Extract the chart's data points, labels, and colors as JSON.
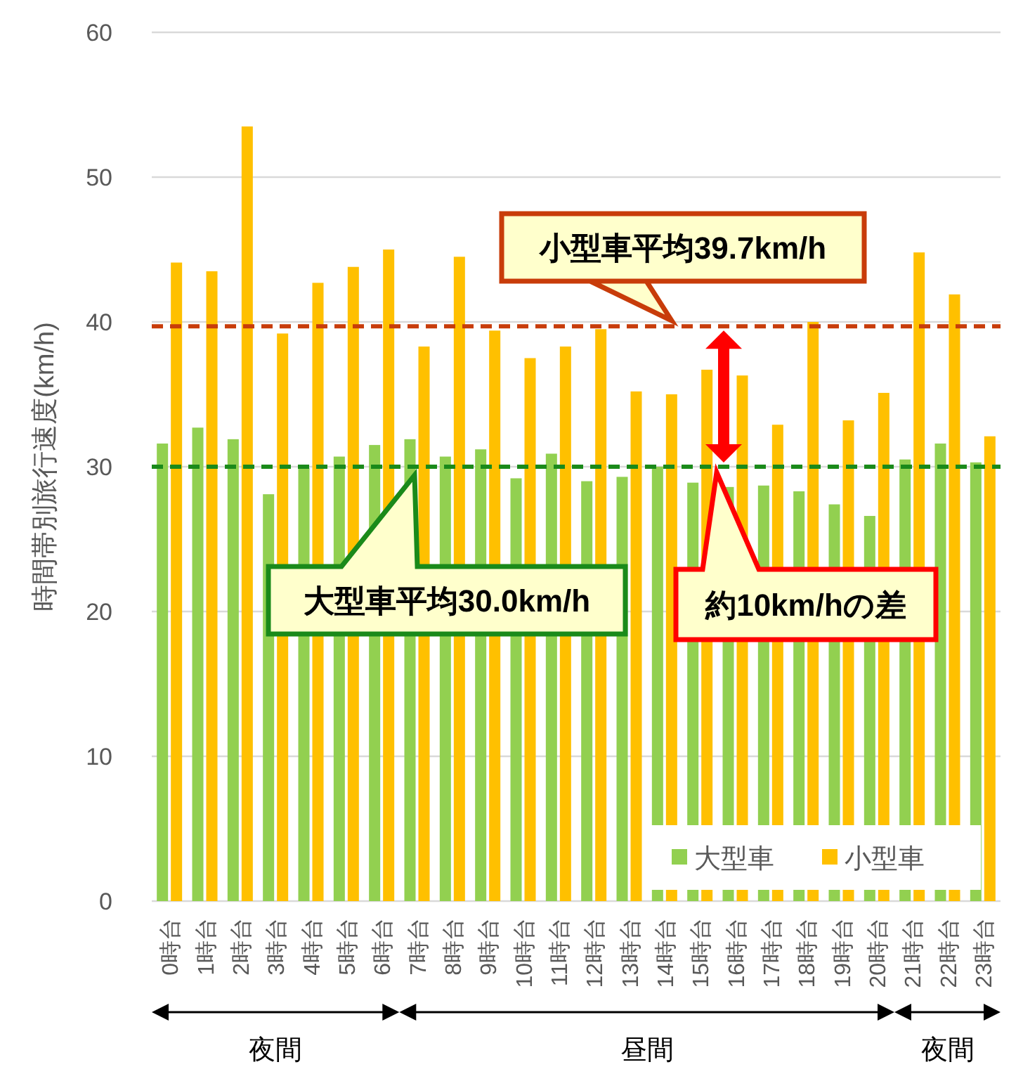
{
  "chart_data": {
    "type": "bar",
    "ylabel": "時間帯別旅行速度(km/h)",
    "categories": [
      "0時台",
      "1時台",
      "2時台",
      "3時台",
      "4時台",
      "5時台",
      "6時台",
      "7時台",
      "8時台",
      "9時台",
      "10時台",
      "11時台",
      "12時台",
      "13時台",
      "14時台",
      "15時台",
      "16時台",
      "17時台",
      "18時台",
      "19時台",
      "20時台",
      "21時台",
      "22時台",
      "23時台"
    ],
    "series": [
      {
        "name": "大型車",
        "color": "#92d050",
        "values": [
          31.6,
          32.7,
          31.9,
          28.1,
          29.9,
          30.7,
          31.5,
          31.9,
          30.7,
          31.2,
          29.2,
          30.9,
          29.0,
          29.3,
          30.0,
          28.9,
          28.6,
          28.7,
          28.3,
          27.4,
          26.6,
          30.5,
          31.6,
          30.3
        ]
      },
      {
        "name": "小型車",
        "color": "#ffc000",
        "values": [
          44.1,
          43.5,
          53.5,
          39.2,
          42.7,
          43.8,
          45.0,
          38.3,
          44.5,
          39.4,
          37.5,
          38.3,
          39.5,
          35.2,
          35.0,
          36.7,
          36.3,
          32.9,
          40.0,
          33.2,
          35.1,
          44.8,
          41.9,
          32.1
        ]
      }
    ],
    "ylim": [
      0,
      60
    ],
    "yticks": [
      0,
      10,
      20,
      30,
      40,
      50,
      60
    ],
    "grid": "y",
    "legend": "bottom right",
    "ref_lines": [
      {
        "axis": "y",
        "value": 39.7,
        "color": "#c83c0a",
        "line_style": "dashed"
      },
      {
        "axis": "y",
        "value": 30.0,
        "color": "#1a8a1a",
        "line_style": "dashed"
      }
    ],
    "annotations": [
      "小型車平均39.7km/h",
      "大型車平均30.0km/h",
      "約10km/hの差",
      "夜間",
      "昼間",
      "夜間"
    ]
  }
}
